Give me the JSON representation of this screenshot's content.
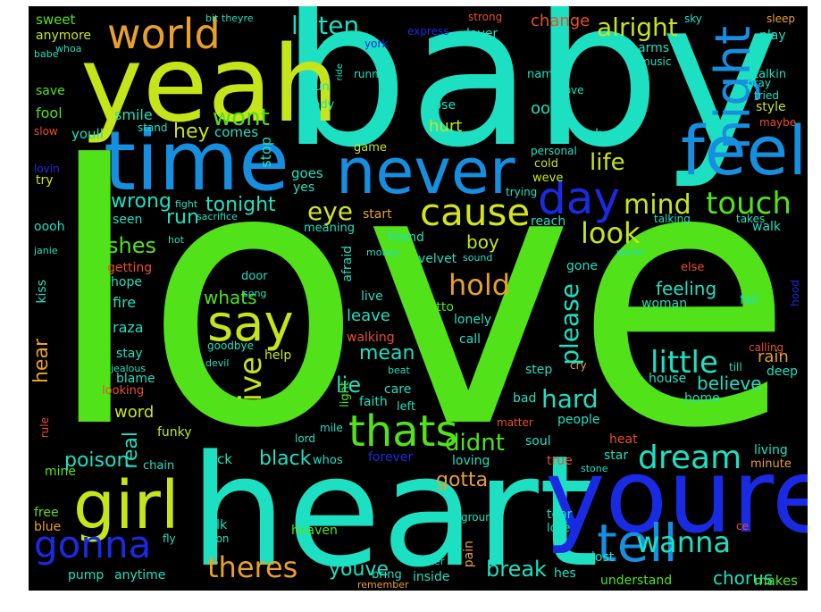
{
  "background": "#000000",
  "words": [
    {
      "text": "love",
      "color": "#52e21a"
    },
    {
      "text": "baby",
      "color": "#1de0c2"
    },
    {
      "text": "heart",
      "color": "#1de0c2"
    },
    {
      "text": "yeah",
      "color": "#c6e41a"
    },
    {
      "text": "time",
      "color": "#168fe0"
    },
    {
      "text": "youre",
      "color": "#1a2ae2"
    },
    {
      "text": "never",
      "color": "#168fe0"
    },
    {
      "text": "feel",
      "color": "#168fe0"
    },
    {
      "text": "girl",
      "color": "#c6e41a"
    },
    {
      "text": "tell",
      "color": "#168fe0"
    },
    {
      "text": "say",
      "color": "#c6e41a"
    },
    {
      "text": "world",
      "color": "#e8a02a"
    },
    {
      "text": "night",
      "color": "#168fe0"
    },
    {
      "text": "cause",
      "color": "#d4e41a"
    },
    {
      "text": "gonna",
      "color": "#1a2ae2"
    },
    {
      "text": "day",
      "color": "#1a2ae2"
    },
    {
      "text": "thats",
      "color": "#52e21a"
    },
    {
      "text": "dream",
      "color": "#1de0c2"
    },
    {
      "text": "wanna",
      "color": "#1de0c2"
    },
    {
      "text": "theres",
      "color": "#e8a02a"
    },
    {
      "text": "touch",
      "color": "#52e21a"
    },
    {
      "text": "little",
      "color": "#1de0c2"
    },
    {
      "text": "hold",
      "color": "#e8a02a"
    },
    {
      "text": "ive",
      "color": "#c6e41a"
    },
    {
      "text": "look",
      "color": "#c6e41a"
    },
    {
      "text": "mind",
      "color": "#c6e41a"
    },
    {
      "text": "eye",
      "color": "#d4e41a"
    },
    {
      "text": "hard",
      "color": "#1de0c2"
    },
    {
      "text": "please",
      "color": "#1de0c2"
    },
    {
      "text": "listen",
      "color": "#1de0c2"
    },
    {
      "text": "alright",
      "color": "#c6e41a"
    },
    {
      "text": "wont",
      "color": "#52e21a"
    },
    {
      "text": "life",
      "color": "#c6e41a"
    },
    {
      "text": "shes",
      "color": "#52e21a"
    },
    {
      "text": "wrong",
      "color": "#1de0c2"
    },
    {
      "text": "tonight",
      "color": "#1de0c2"
    },
    {
      "text": "hey",
      "color": "#c6e41a"
    },
    {
      "text": "run",
      "color": "#1de0c2"
    },
    {
      "text": "lie",
      "color": "#1de0c2"
    },
    {
      "text": "mean",
      "color": "#1de0c2"
    },
    {
      "text": "didnt",
      "color": "#52e21a"
    },
    {
      "text": "break",
      "color": "#1de0c2"
    },
    {
      "text": "chorus",
      "color": "#1de0c2"
    },
    {
      "text": "youve",
      "color": "#1de0c2"
    },
    {
      "text": "black",
      "color": "#1de0c2"
    },
    {
      "text": "poison",
      "color": "#1de0c2"
    },
    {
      "text": "real",
      "color": "#1de0c2"
    },
    {
      "text": "gotta",
      "color": "#e8a02a"
    },
    {
      "text": "boy",
      "color": "#c6e41a"
    },
    {
      "text": "feeling",
      "color": "#1de0c2"
    },
    {
      "text": "believe",
      "color": "#1de0c2"
    },
    {
      "text": "hear",
      "color": "#e8a02a"
    },
    {
      "text": "leave",
      "color": "#1de0c2"
    },
    {
      "text": "whats",
      "color": "#52e21a"
    },
    {
      "text": "rain",
      "color": "#e8a02a"
    },
    {
      "text": "word",
      "color": "#c6e41a"
    },
    {
      "text": "hurt",
      "color": "#c6e41a"
    },
    {
      "text": "change",
      "color": "#e8502a"
    },
    {
      "text": "smile",
      "color": "#1de0c2"
    },
    {
      "text": "comes",
      "color": "#1de0c2"
    },
    {
      "text": "youll",
      "color": "#1de0c2"
    },
    {
      "text": "fool",
      "color": "#52e21a"
    },
    {
      "text": "save",
      "color": "#52e21a"
    },
    {
      "text": "sweet",
      "color": "#52e21a"
    },
    {
      "text": "anymore",
      "color": "#c6e41a"
    },
    {
      "text": "stop",
      "color": "#1de0c2"
    },
    {
      "text": "goes",
      "color": "#1de0c2"
    },
    {
      "text": "yes",
      "color": "#1de0c2"
    },
    {
      "text": "seen",
      "color": "#1de0c2"
    },
    {
      "text": "getting",
      "color": "#e8502a"
    },
    {
      "text": "hope",
      "color": "#1de0c2"
    },
    {
      "text": "fire",
      "color": "#1de0c2"
    },
    {
      "text": "raza",
      "color": "#1de0c2"
    },
    {
      "text": "stay",
      "color": "#1de0c2"
    },
    {
      "text": "blame",
      "color": "#1de0c2"
    },
    {
      "text": "looking",
      "color": "#e8502a"
    },
    {
      "text": "funky",
      "color": "#c6e41a"
    },
    {
      "text": "mine",
      "color": "#52e21a"
    },
    {
      "text": "chain",
      "color": "#1de0c2"
    },
    {
      "text": "rock",
      "color": "#1de0c2"
    },
    {
      "text": "free",
      "color": "#52e21a"
    },
    {
      "text": "blue",
      "color": "#e8a02a"
    },
    {
      "text": "pump",
      "color": "#1de0c2"
    },
    {
      "text": "anytime",
      "color": "#1de0c2"
    },
    {
      "text": "talk",
      "color": "#1de0c2"
    },
    {
      "text": "heaven",
      "color": "#52e21a"
    },
    {
      "text": "inside",
      "color": "#1de0c2"
    },
    {
      "text": "pain",
      "color": "#e8a02a"
    },
    {
      "text": "hes",
      "color": "#1de0c2"
    },
    {
      "text": "bring",
      "color": "#1de0c2"
    },
    {
      "text": "kiss",
      "color": "#1de0c2"
    },
    {
      "text": "rule",
      "color": "#e8502a"
    },
    {
      "text": "ghetto",
      "color": "#52e21a"
    },
    {
      "text": "lonely",
      "color": "#1de0c2"
    },
    {
      "text": "call",
      "color": "#1de0c2"
    },
    {
      "text": "walking",
      "color": "#e8502a"
    },
    {
      "text": "help",
      "color": "#c6e41a"
    },
    {
      "text": "live",
      "color": "#1de0c2"
    },
    {
      "text": "velvet",
      "color": "#1de0c2"
    },
    {
      "text": "friend",
      "color": "#1de0c2"
    },
    {
      "text": "meaning",
      "color": "#1de0c2"
    },
    {
      "text": "afraid",
      "color": "#1de0c2"
    },
    {
      "text": "door",
      "color": "#1de0c2"
    },
    {
      "text": "start",
      "color": "#e8a02a"
    },
    {
      "text": "reach",
      "color": "#1de0c2"
    },
    {
      "text": "gone",
      "color": "#1de0c2"
    },
    {
      "text": "woman",
      "color": "#1de0c2"
    },
    {
      "text": "fall",
      "color": "#1de0c2"
    },
    {
      "text": "walk",
      "color": "#1de0c2"
    },
    {
      "text": "step",
      "color": "#1de0c2"
    },
    {
      "text": "bad",
      "color": "#1de0c2"
    },
    {
      "text": "house",
      "color": "#1de0c2"
    },
    {
      "text": "home",
      "color": "#1de0c2"
    },
    {
      "text": "deep",
      "color": "#1de0c2"
    },
    {
      "text": "people",
      "color": "#1de0c2"
    },
    {
      "text": "soul",
      "color": "#1de0c2"
    },
    {
      "text": "heat",
      "color": "#e8502a"
    },
    {
      "text": "living",
      "color": "#1de0c2"
    },
    {
      "text": "star",
      "color": "#1de0c2"
    },
    {
      "text": "minute",
      "color": "#e8a02a"
    },
    {
      "text": "true",
      "color": "#e8502a"
    },
    {
      "text": "forever",
      "color": "#1a2ae2"
    },
    {
      "text": "loving",
      "color": "#1de0c2"
    },
    {
      "text": "whos",
      "color": "#1de0c2"
    },
    {
      "text": "left",
      "color": "#1de0c2"
    },
    {
      "text": "faith",
      "color": "#1de0c2"
    },
    {
      "text": "care",
      "color": "#1de0c2"
    },
    {
      "text": "light",
      "color": "#52e21a"
    },
    {
      "text": "tear",
      "color": "#1de0c2"
    },
    {
      "text": "lose",
      "color": "#1de0c2"
    },
    {
      "text": "lost",
      "color": "#1de0c2"
    },
    {
      "text": "understand",
      "color": "#52e21a"
    },
    {
      "text": "makes",
      "color": "#52e21a"
    },
    {
      "text": "hand",
      "color": "#1de0c2"
    },
    {
      "text": "ooh",
      "color": "#1de0c2"
    },
    {
      "text": "oooh",
      "color": "#1de0c2"
    },
    {
      "text": "try",
      "color": "#c6e41a"
    },
    {
      "text": "cold",
      "color": "#c6e41a"
    },
    {
      "text": "weve",
      "color": "#c6e41a"
    },
    {
      "text": "game",
      "color": "#c6e41a"
    },
    {
      "text": "close",
      "color": "#1de0c2"
    },
    {
      "text": "body",
      "color": "#1de0c2"
    },
    {
      "text": "gun",
      "color": "#1de0c2"
    },
    {
      "text": "lover",
      "color": "#1de0c2"
    },
    {
      "text": "arms",
      "color": "#1de0c2"
    },
    {
      "text": "play",
      "color": "#1de0c2"
    },
    {
      "text": "talkin",
      "color": "#1de0c2"
    },
    {
      "text": "style",
      "color": "#c6e41a"
    },
    {
      "text": "name",
      "color": "#1de0c2"
    },
    {
      "text": "running",
      "color": "#1de0c2"
    },
    {
      "text": "personal",
      "color": "#1de0c2"
    },
    {
      "text": "trying",
      "color": "#1de0c2"
    },
    {
      "text": "pray",
      "color": "#1de0c2"
    },
    {
      "text": "sometime",
      "color": "#1de0c2"
    },
    {
      "text": "express",
      "color": "#1a2ae2"
    },
    {
      "text": "york",
      "color": "#1a2ae2"
    },
    {
      "text": "strong",
      "color": "#e8502a"
    },
    {
      "text": "music",
      "color": "#1de0c2"
    },
    {
      "text": "move",
      "color": "#1de0c2"
    },
    {
      "text": "sky",
      "color": "#1de0c2"
    },
    {
      "text": "sleep",
      "color": "#e8a02a"
    },
    {
      "text": "maybe",
      "color": "#e8502a"
    },
    {
      "text": "tried",
      "color": "#1de0c2"
    },
    {
      "text": "hood",
      "color": "#1a2ae2"
    },
    {
      "text": "else",
      "color": "#e8502a"
    },
    {
      "text": "worth",
      "color": "#1de0c2"
    },
    {
      "text": "talking",
      "color": "#1de0c2"
    },
    {
      "text": "takes",
      "color": "#1de0c2"
    },
    {
      "text": "calling",
      "color": "#e8502a"
    },
    {
      "text": "till",
      "color": "#1de0c2"
    },
    {
      "text": "cry",
      "color": "#e8a02a"
    },
    {
      "text": "stone",
      "color": "#1de0c2"
    },
    {
      "text": "ce",
      "color": "#e8502a"
    },
    {
      "text": "soon",
      "color": "#1de0c2"
    },
    {
      "text": "ground",
      "color": "#1de0c2"
    },
    {
      "text": "water",
      "color": "#1de0c2"
    },
    {
      "text": "remember",
      "color": "#e8a02a"
    },
    {
      "text": "fly",
      "color": "#1de0c2"
    },
    {
      "text": "lord",
      "color": "#1de0c2"
    },
    {
      "text": "mile",
      "color": "#1de0c2"
    },
    {
      "text": "matter",
      "color": "#e8502a"
    },
    {
      "text": "beat",
      "color": "#1de0c2"
    },
    {
      "text": "money",
      "color": "#1de0c2"
    },
    {
      "text": "sound",
      "color": "#1de0c2"
    },
    {
      "text": "song",
      "color": "#1de0c2"
    },
    {
      "text": "goodbye",
      "color": "#1de0c2"
    },
    {
      "text": "devil",
      "color": "#1de0c2"
    },
    {
      "text": "jealous",
      "color": "#1de0c2"
    },
    {
      "text": "hot",
      "color": "#1de0c2"
    },
    {
      "text": "sacrifice",
      "color": "#1de0c2"
    },
    {
      "text": "fight",
      "color": "#1de0c2"
    },
    {
      "text": "stand",
      "color": "#1de0c2"
    },
    {
      "text": "slow",
      "color": "#e8502a"
    },
    {
      "text": "babe",
      "color": "#1de0c2"
    },
    {
      "text": "whoa",
      "color": "#1de0c2"
    },
    {
      "text": "bit",
      "color": "#1de0c2"
    },
    {
      "text": "theyre",
      "color": "#1de0c2"
    },
    {
      "text": "ride",
      "color": "#1de0c2"
    },
    {
      "text": "lovin",
      "color": "#1a2ae2"
    },
    {
      "text": "janie",
      "color": "#1de0c2"
    }
  ]
}
